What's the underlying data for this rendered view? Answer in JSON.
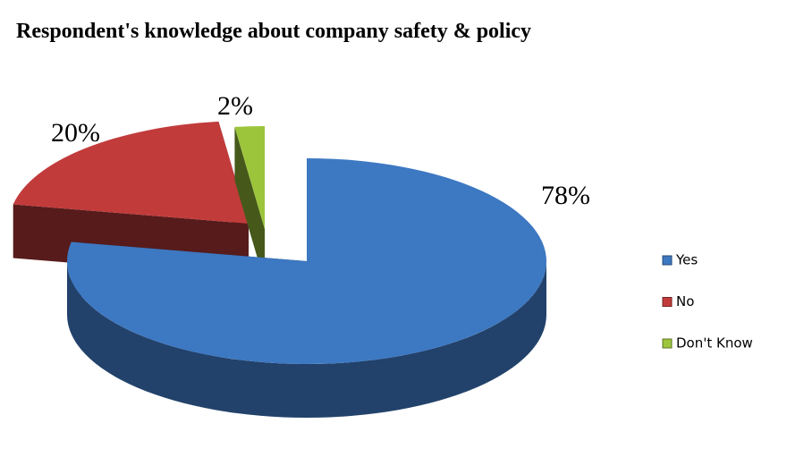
{
  "chart_data": {
    "type": "pie",
    "title": "Respondent's knowledge about company safety & policy",
    "categories": [
      "Yes",
      "No",
      "Don't Know"
    ],
    "values": [
      78,
      20,
      2
    ],
    "value_labels": [
      "78%",
      "20%",
      "2%"
    ],
    "colors": [
      "#3d78c2",
      "#c23b3b",
      "#9cc53c"
    ],
    "legend": "right"
  }
}
